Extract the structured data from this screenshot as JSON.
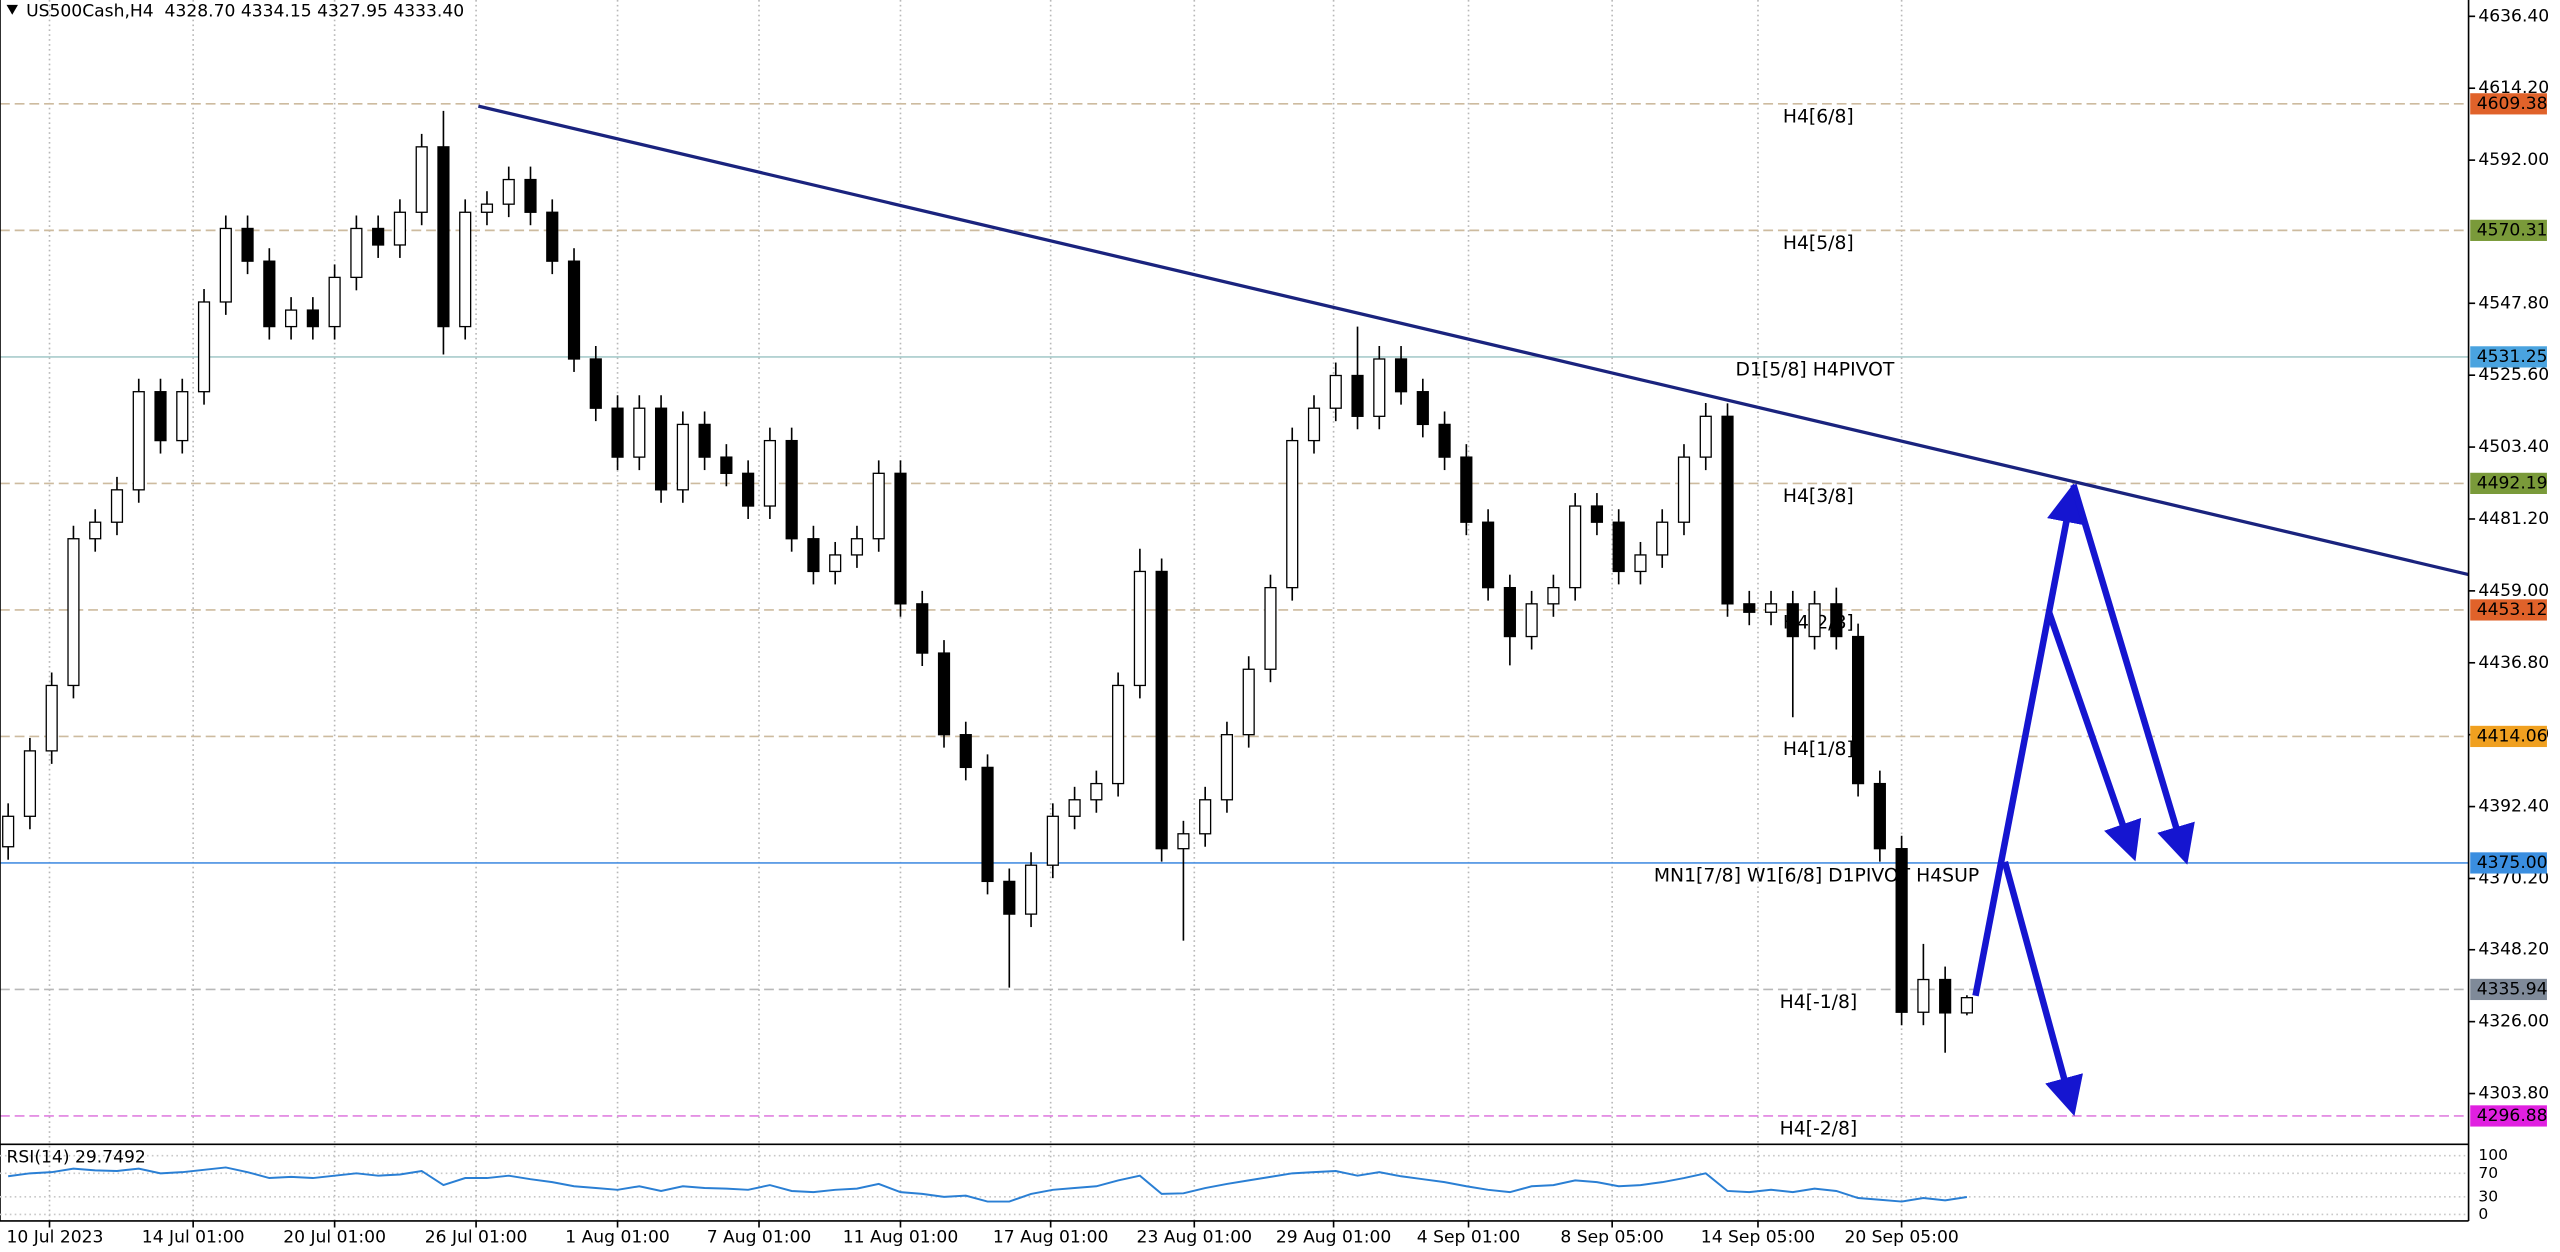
{
  "chart_data": {
    "type": "candlestick",
    "title": "US500Cash,H4  4328.70 4334.15 4327.95 4333.40",
    "open": [
      4380.0,
      4389.4,
      4409.6,
      4429.8,
      4475.1,
      4480.2,
      4490.2,
      4520.5,
      4505.4,
      4520.5,
      4548.2,
      4570.9,
      4560.8,
      4540.6,
      4545.7,
      4540.6,
      4555.8,
      4570.9,
      4565.8,
      4575.9,
      4596.1,
      4540.6,
      4575.9,
      4578.4,
      4586.0,
      4575.9,
      4560.8,
      4530.6,
      4515.4,
      4500.3,
      4515.4,
      4490.2,
      4510.4,
      4500.3,
      4495.3,
      4485.2,
      4505.4,
      4475.1,
      4465.0,
      4470.1,
      4475.1,
      4495.3,
      4455.0,
      4439.8,
      4414.6,
      4404.5,
      4369.3,
      4359.2,
      4374.3,
      4389.4,
      4394.5,
      4399.5,
      4429.8,
      4465.0,
      4379.4,
      4384.0,
      4394.5,
      4414.6,
      4434.8,
      4460.0,
      4505.4,
      4515.4,
      4525.5,
      4512.9,
      4530.6,
      4520.5,
      4510.4,
      4500.3,
      4480.2,
      4460.0,
      4444.9,
      4455.0,
      4460.0,
      4485.2,
      4480.2,
      4465.0,
      4470.1,
      4480.2,
      4500.3,
      4512.9,
      4455.0,
      4452.4,
      4455.0,
      4444.9,
      4455.0,
      4444.9,
      4399.5,
      4379.4,
      4328.9,
      4339.0,
      4328.7
    ],
    "high": [
      4393.4,
      4413.6,
      4433.8,
      4479.1,
      4484.2,
      4494.2,
      4524.5,
      4524.5,
      4524.5,
      4552.2,
      4574.9,
      4574.9,
      4564.8,
      4549.7,
      4549.7,
      4559.8,
      4574.9,
      4574.9,
      4579.9,
      4600.1,
      4607.2,
      4579.9,
      4582.4,
      4590.0,
      4590.0,
      4579.9,
      4564.8,
      4534.6,
      4519.4,
      4519.4,
      4519.4,
      4514.4,
      4514.4,
      4504.3,
      4499.3,
      4509.4,
      4509.4,
      4479.1,
      4474.1,
      4479.1,
      4499.3,
      4499.3,
      4459.0,
      4443.8,
      4418.6,
      4408.5,
      4373.3,
      4378.3,
      4393.4,
      4398.5,
      4403.5,
      4433.8,
      4472.0,
      4469.0,
      4388.0,
      4398.5,
      4418.6,
      4438.8,
      4464.0,
      4509.4,
      4519.4,
      4529.5,
      4540.6,
      4534.6,
      4534.6,
      4524.5,
      4514.4,
      4504.3,
      4484.2,
      4464.0,
      4459.0,
      4464.0,
      4489.2,
      4489.2,
      4484.2,
      4474.1,
      4484.2,
      4504.3,
      4517.0,
      4516.9,
      4459.0,
      4459.0,
      4459.0,
      4459.0,
      4460.0,
      4448.9,
      4403.5,
      4383.4,
      4350.0,
      4343.0,
      4334.15
    ],
    "low": [
      4376.0,
      4385.4,
      4405.6,
      4425.8,
      4471.1,
      4476.2,
      4486.2,
      4501.4,
      4501.4,
      4516.5,
      4544.2,
      4556.8,
      4536.6,
      4536.6,
      4536.6,
      4536.6,
      4551.8,
      4561.8,
      4561.8,
      4571.9,
      4532.0,
      4536.6,
      4571.9,
      4574.4,
      4571.9,
      4556.8,
      4526.6,
      4511.4,
      4496.3,
      4496.3,
      4486.2,
      4486.2,
      4496.3,
      4491.3,
      4481.2,
      4481.2,
      4471.1,
      4461.0,
      4461.0,
      4466.1,
      4471.1,
      4451.0,
      4435.8,
      4410.6,
      4400.5,
      4365.3,
      4336.5,
      4355.2,
      4370.3,
      4385.4,
      4390.5,
      4395.5,
      4425.8,
      4375.4,
      4351.0,
      4380.0,
      4390.5,
      4410.6,
      4430.8,
      4456.0,
      4501.4,
      4511.4,
      4508.9,
      4508.9,
      4516.5,
      4506.4,
      4496.3,
      4476.2,
      4456.0,
      4436.0,
      4440.9,
      4451.0,
      4456.0,
      4476.2,
      4461.0,
      4461.0,
      4466.1,
      4476.2,
      4496.3,
      4451.0,
      4448.4,
      4448.4,
      4420.0,
      4440.9,
      4440.9,
      4395.5,
      4375.4,
      4324.9,
      4324.9,
      4316.4,
      4327.95
    ],
    "close": [
      4389.4,
      4409.6,
      4429.8,
      4475.1,
      4480.2,
      4490.2,
      4520.5,
      4505.4,
      4520.5,
      4548.2,
      4570.9,
      4560.8,
      4540.6,
      4545.7,
      4540.6,
      4555.8,
      4570.9,
      4565.8,
      4575.9,
      4596.1,
      4540.6,
      4575.9,
      4578.4,
      4586.0,
      4575.9,
      4560.8,
      4530.6,
      4515.4,
      4500.3,
      4515.4,
      4490.2,
      4510.4,
      4500.3,
      4495.3,
      4485.2,
      4505.4,
      4475.1,
      4465.0,
      4470.1,
      4475.1,
      4495.3,
      4455.0,
      4439.8,
      4414.6,
      4404.5,
      4369.3,
      4359.2,
      4374.3,
      4389.4,
      4394.5,
      4399.5,
      4429.8,
      4465.0,
      4379.4,
      4384.0,
      4394.5,
      4414.6,
      4434.8,
      4460.0,
      4505.4,
      4515.4,
      4525.5,
      4512.9,
      4530.6,
      4520.5,
      4510.4,
      4500.3,
      4480.2,
      4460.0,
      4444.9,
      4455.0,
      4460.0,
      4485.2,
      4480.2,
      4465.0,
      4470.1,
      4480.2,
      4500.3,
      4512.9,
      4455.0,
      4452.4,
      4455.0,
      4444.9,
      4455.0,
      4444.9,
      4399.5,
      4379.4,
      4328.9,
      4339.0,
      4328.7,
      4333.4
    ],
    "up_color": "#ffffff",
    "down_color": "#000000",
    "wick_color": "#000000",
    "ylim": [
      4288.64,
      4641.44
    ],
    "yticks": [
      {
        "value": 4636.4,
        "label": "4636.40"
      },
      {
        "value": 4614.2,
        "label": "4614.20"
      },
      {
        "value": 4592,
        "label": "4592.00"
      },
      {
        "value": 4547.8,
        "label": "4547.80"
      },
      {
        "value": 4525.6,
        "label": "4525.60"
      },
      {
        "value": 4503.4,
        "label": "4503.40"
      },
      {
        "value": 4481.2,
        "label": "4481.20"
      },
      {
        "value": 4459,
        "label": "4459.00"
      },
      {
        "value": 4436.8,
        "label": "4436.80"
      },
      {
        "value": 4414.6,
        "label": "4414.60"
      },
      {
        "value": 4392.4,
        "label": "4392.40"
      },
      {
        "value": 4370.2,
        "label": "4370.20"
      },
      {
        "value": 4348.2,
        "label": "4348.20"
      },
      {
        "value": 4326,
        "label": "4326.00"
      },
      {
        "value": 4303.8,
        "label": "4303.80"
      }
    ],
    "xlim": [
      -0.375,
      113.05
    ],
    "xticks": [
      {
        "value": 1.9,
        "label": "10 Jul 2023"
      },
      {
        "value": 8.5,
        "label": "14 Jul 01:00"
      },
      {
        "value": 15,
        "label": "20 Jul 01:00"
      },
      {
        "value": 21.5,
        "label": "26 Jul 01:00"
      },
      {
        "value": 28,
        "label": "1 Aug 01:00"
      },
      {
        "value": 34.5,
        "label": "7 Aug 01:00"
      },
      {
        "value": 41,
        "label": "11 Aug 01:00"
      },
      {
        "value": 47.9,
        "label": "17 Aug 01:00"
      },
      {
        "value": 54.5,
        "label": "23 Aug 01:00"
      },
      {
        "value": 60.9,
        "label": "29 Aug 01:00"
      },
      {
        "value": 67.1,
        "label": "4 Sep 01:00"
      },
      {
        "value": 73.7,
        "label": "8 Sep 05:00"
      },
      {
        "value": 80.4,
        "label": "14 Sep 05:00"
      },
      {
        "value": 87,
        "label": "20 Sep 05:00"
      }
    ],
    "grid": true,
    "levels": [
      {
        "value": 4609.38,
        "label": "4609.38",
        "name": "H4[6/8]",
        "color": "#e0622a",
        "line_color": "#cdbb9f",
        "dashed": true
      },
      {
        "value": 4570.31,
        "label": "4570.31",
        "name": "H4[5/8]",
        "color": "#7a9a3a",
        "line_color": "#cdbb9f",
        "dashed": true
      },
      {
        "value": 4531.25,
        "label": "4531.25",
        "name": "D1[5/8] H4PIVOT",
        "color": "#4aa3df",
        "line_color": "#a8cccc",
        "dashed": false
      },
      {
        "value": 4492.19,
        "label": "4492.19",
        "name": "H4[3/8]",
        "color": "#7a9a3a",
        "line_color": "#cdbb9f",
        "dashed": true
      },
      {
        "value": 4453.12,
        "label": "4453.12",
        "name": "H4[2/8]",
        "color": "#e0622a",
        "line_color": "#cdbb9f",
        "dashed": true
      },
      {
        "value": 4414.06,
        "label": "4414.06",
        "name": "H4[1/8]",
        "color": "#f0a020",
        "line_color": "#cdbb9f",
        "dashed": true
      },
      {
        "value": 4375,
        "label": "4375.00",
        "name": "MN1[7/8] W1[6/8] D1PIVOT H4SUP",
        "color": "#3a8ee0",
        "line_color": "#4a90e2",
        "dashed": false
      },
      {
        "value": 4335.94,
        "label": "4335.94",
        "name": "H4[-1/8]",
        "color": "#7f8a99",
        "line_color": "#b8b8b8",
        "dashed": true
      },
      {
        "value": 4296.88,
        "label": "4296.88",
        "name": "H4[-2/8]",
        "color": "#e020e0",
        "line_color": "#e080e0",
        "dashed": true
      }
    ],
    "rsi": {
      "label": "RSI(14) 29.7492",
      "color": "#2a7fd4",
      "ylim": [
        -11.1,
        116.7
      ],
      "yticks": [
        100,
        70,
        30,
        0
      ],
      "values": [
        65,
        70,
        72,
        78,
        75,
        74,
        78,
        70,
        72,
        76,
        80,
        72,
        62,
        64,
        62,
        66,
        70,
        66,
        68,
        74,
        50,
        62,
        62,
        66,
        60,
        55,
        48,
        45,
        42,
        48,
        40,
        48,
        45,
        44,
        42,
        50,
        40,
        38,
        42,
        44,
        52,
        38,
        35,
        30,
        32,
        22,
        22,
        35,
        42,
        45,
        48,
        58,
        66,
        35,
        36,
        45,
        52,
        58,
        64,
        70,
        72,
        74,
        66,
        72,
        65,
        60,
        55,
        48,
        42,
        38,
        48,
        50,
        58,
        55,
        48,
        50,
        55,
        62,
        70,
        40,
        38,
        42,
        38,
        44,
        40,
        28,
        25,
        22,
        28,
        24,
        29.7492
      ]
    }
  }
}
